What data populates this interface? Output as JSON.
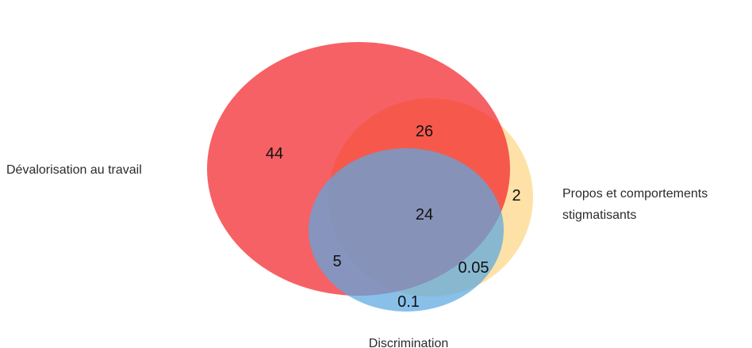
{
  "chart_data": {
    "type": "venn",
    "sets": [
      {
        "id": "devalorisation",
        "label": "Dévalorisation au travail",
        "color": "#f2242a"
      },
      {
        "id": "propos",
        "label_lines": [
          "Propos et comportements",
          "stigmatisants"
        ],
        "color": "#fdc95c"
      },
      {
        "id": "discrimination",
        "label": "Discrimination",
        "color": "#5aa8e0"
      }
    ],
    "regions": [
      {
        "sets": [
          "devalorisation"
        ],
        "value": "44"
      },
      {
        "sets": [
          "devalorisation",
          "propos"
        ],
        "value": "26"
      },
      {
        "sets": [
          "devalorisation",
          "propos",
          "discrimination"
        ],
        "value": "24"
      },
      {
        "sets": [
          "propos"
        ],
        "value": "2"
      },
      {
        "sets": [
          "devalorisation",
          "discrimination"
        ],
        "value": "5"
      },
      {
        "sets": [
          "propos",
          "discrimination"
        ],
        "value": "0.05"
      },
      {
        "sets": [
          "discrimination"
        ],
        "value": "0.1"
      }
    ]
  }
}
